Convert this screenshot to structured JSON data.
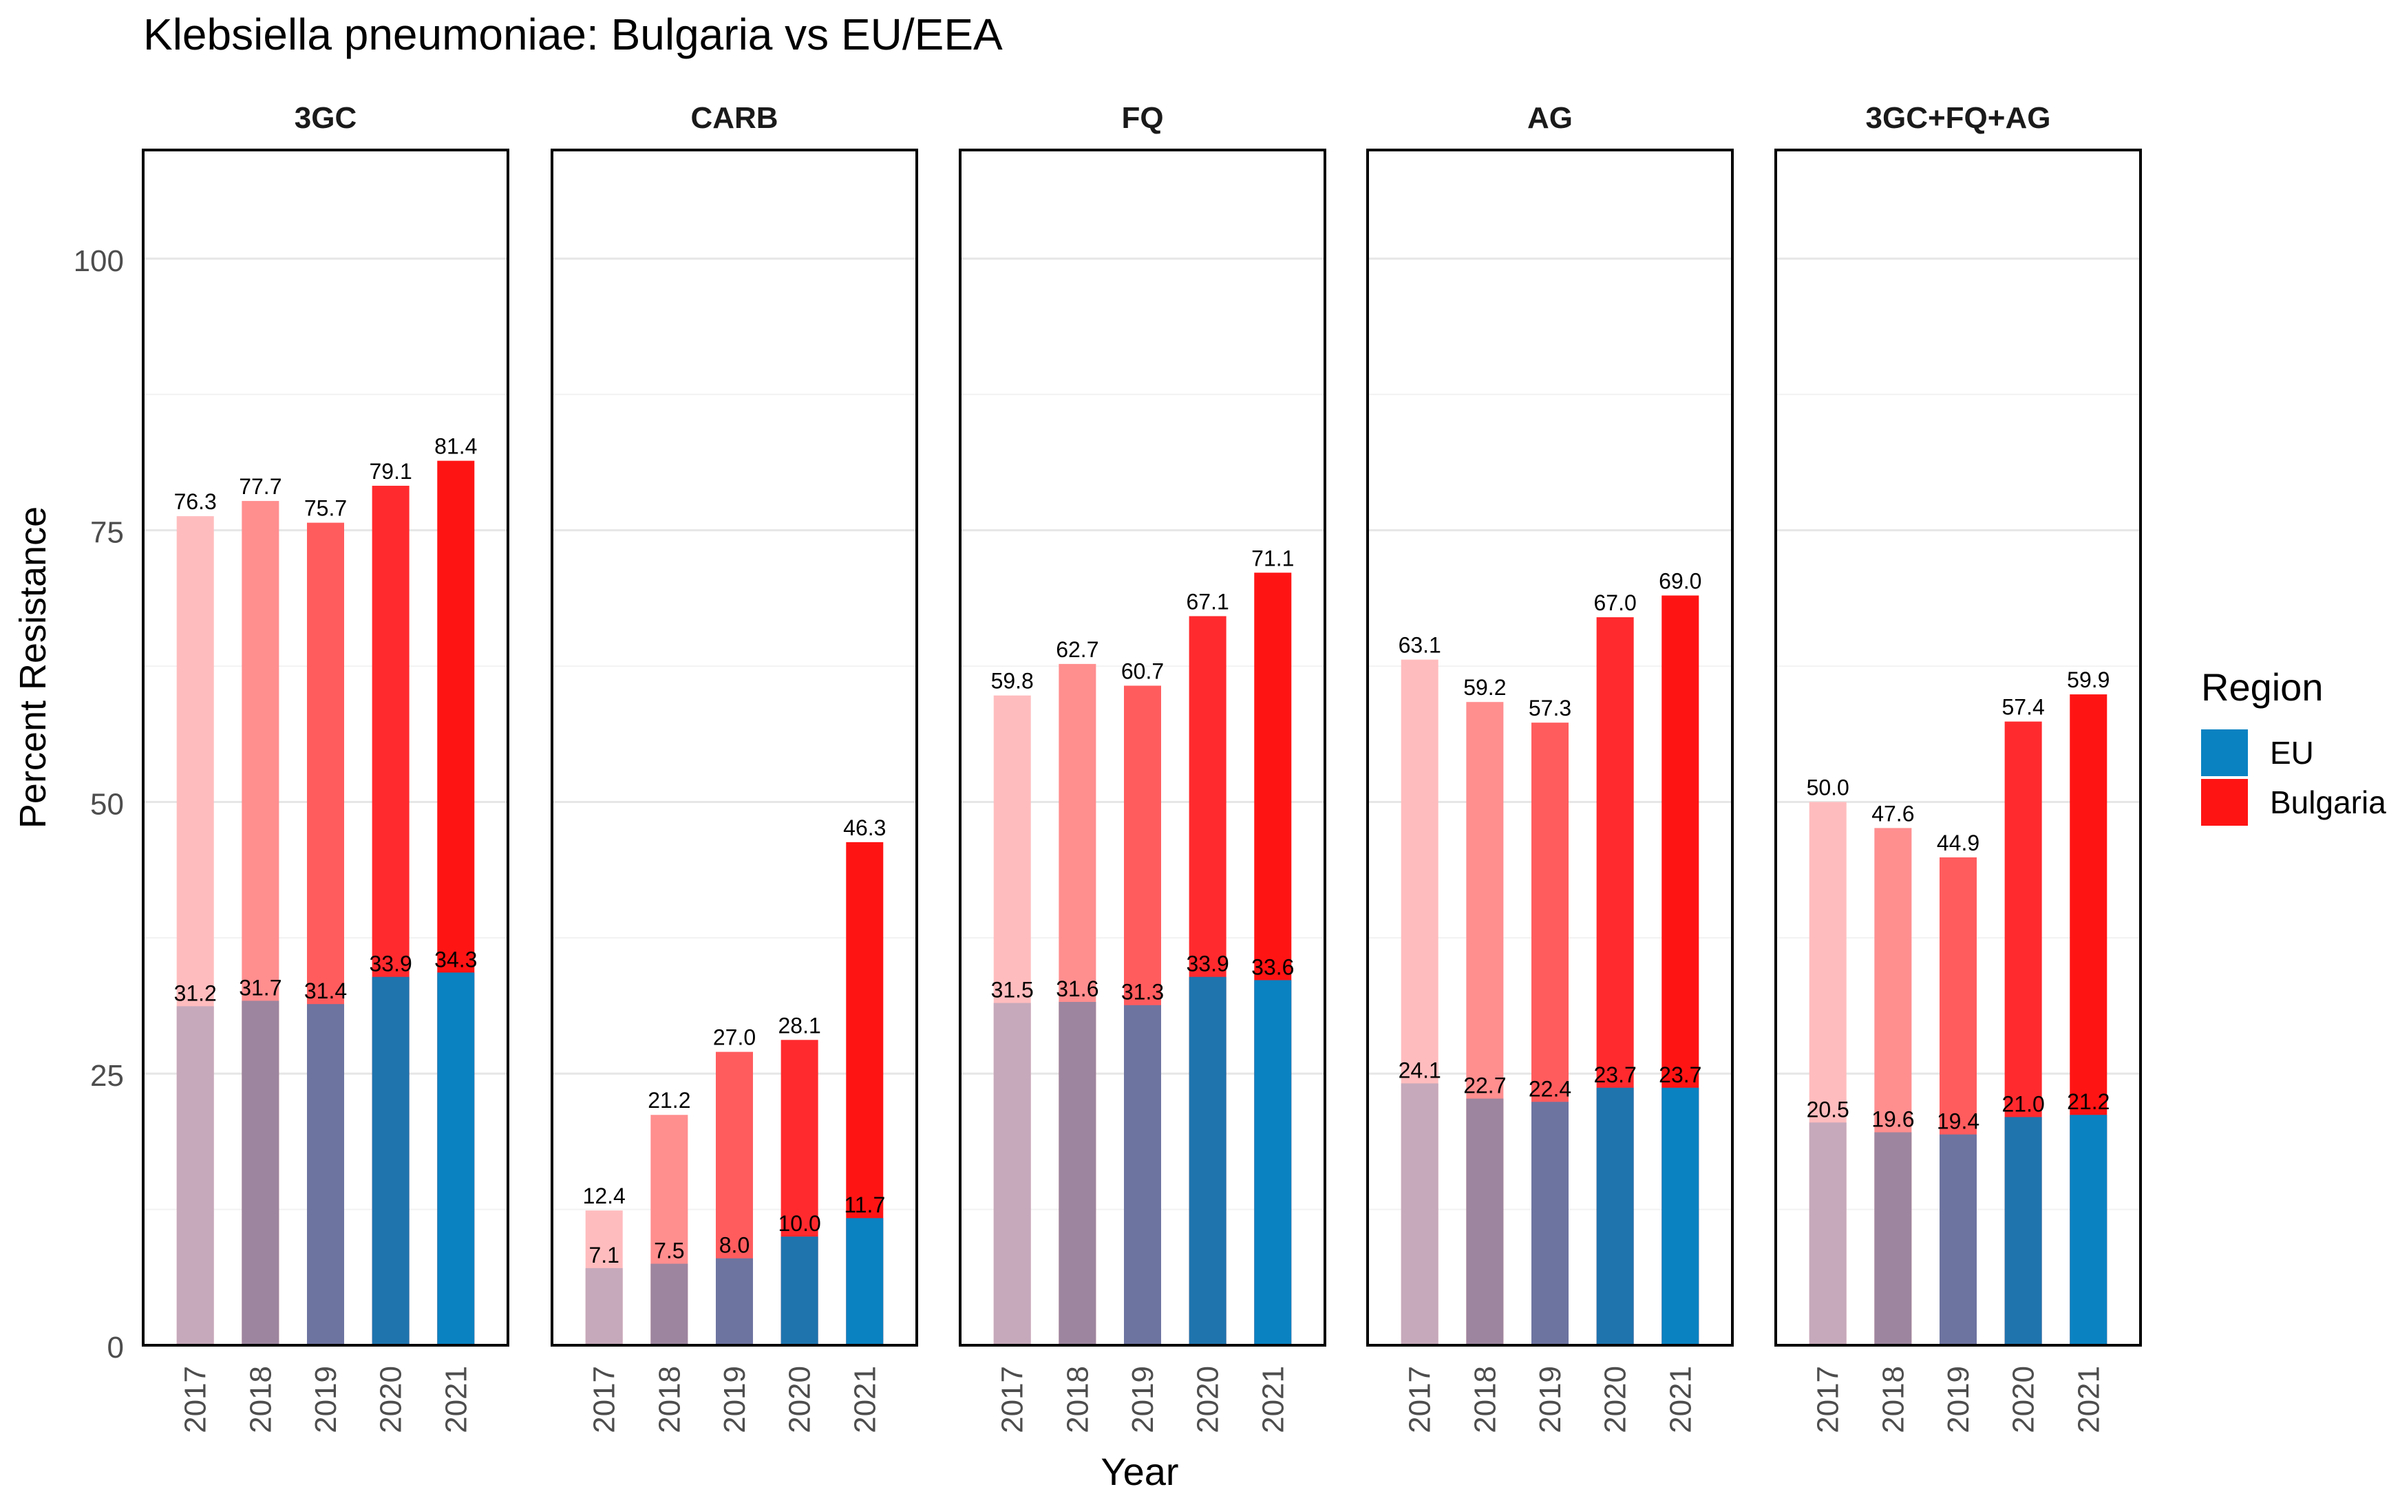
{
  "chart_data": {
    "type": "bar",
    "title": "Klebsiella pneumoniae: Bulgaria vs EU/EEA",
    "xlabel": "Year",
    "ylabel": "Percent Resistance",
    "ylim": [
      0,
      110
    ],
    "yticks": [
      0,
      25,
      50,
      75,
      100
    ],
    "grid": true,
    "categories": [
      "2017",
      "2018",
      "2019",
      "2020",
      "2021"
    ],
    "legend": {
      "title": "Region",
      "position": "right",
      "entries": [
        {
          "name": "EU",
          "color": "#0a82c2"
        },
        {
          "name": "Bulgaria",
          "color": "#ff1414"
        }
      ]
    },
    "bulgaria_colors": [
      "#ffbcbe",
      "#ff8e8f",
      "#ff5c5e",
      "#ff2a2e",
      "#ff1414"
    ],
    "eu_colors": [
      "#c6a9bb",
      "#9d859f",
      "#6d74a0",
      "#1f74ae",
      "#0a82c2"
    ],
    "panels": [
      {
        "label": "3GC",
        "bulgaria": [
          76.3,
          77.7,
          75.7,
          79.1,
          81.4
        ],
        "bulgaria_labels": [
          "76.3",
          "77.7",
          "75.7",
          "79.1",
          "81.4"
        ],
        "eu": [
          31.2,
          31.7,
          31.4,
          33.9,
          34.3
        ],
        "eu_labels": [
          "31.2",
          "31.7",
          "31.4",
          "33.9",
          "34.3"
        ]
      },
      {
        "label": "CARB",
        "bulgaria": [
          12.4,
          21.2,
          27.0,
          28.1,
          46.3
        ],
        "bulgaria_labels": [
          "12.4",
          "21.2",
          "27.0",
          "28.1",
          "46.3"
        ],
        "eu": [
          7.1,
          7.5,
          8.0,
          10.0,
          11.7
        ],
        "eu_labels": [
          "7.1",
          "7.5",
          "8.0",
          "10.0",
          "11.7"
        ]
      },
      {
        "label": "FQ",
        "bulgaria": [
          59.8,
          62.7,
          60.7,
          67.1,
          71.1
        ],
        "bulgaria_labels": [
          "59.8",
          "62.7",
          "60.7",
          "67.1",
          "71.1"
        ],
        "eu": [
          31.5,
          31.6,
          31.3,
          33.9,
          33.6
        ],
        "eu_labels": [
          "31.5",
          "31.6",
          "31.3",
          "33.9",
          "33.6"
        ]
      },
      {
        "label": "AG",
        "bulgaria": [
          63.1,
          59.2,
          57.3,
          67.0,
          69.0
        ],
        "bulgaria_labels": [
          "63.1",
          "59.2",
          "57.3",
          "67.0",
          "69.0"
        ],
        "eu": [
          24.1,
          22.7,
          22.4,
          23.7,
          23.7
        ],
        "eu_labels": [
          "24.1",
          "22.7",
          "22.4",
          "23.7",
          "23.7"
        ]
      },
      {
        "label": "3GC+FQ+AG",
        "bulgaria": [
          50.0,
          47.6,
          44.9,
          57.4,
          59.9
        ],
        "bulgaria_labels": [
          "50.0",
          "47.6",
          "44.9",
          "57.4",
          "59.9"
        ],
        "eu": [
          20.5,
          19.6,
          19.4,
          21.0,
          21.2
        ],
        "eu_labels": [
          "20.5",
          "19.6",
          "19.4",
          "21.0",
          "21.2"
        ]
      }
    ]
  }
}
